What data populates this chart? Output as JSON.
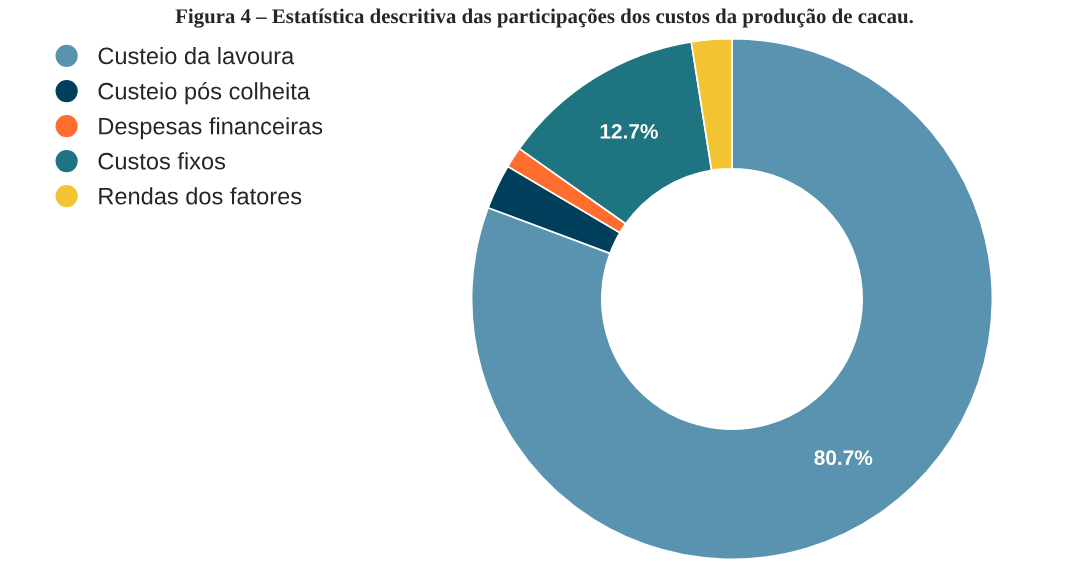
{
  "chart_data": {
    "type": "donut",
    "title": "Figura 4 – Estatística descritiva das participações dos custos da produção de cacau.",
    "categories": [
      "Custeio da lavoura",
      "Custeio pós colheita",
      "Despesas financeiras",
      "Custos fixos",
      "Rendas dos fatores"
    ],
    "values": [
      80.7,
      2.8,
      1.3,
      12.7,
      2.5
    ],
    "colors": [
      "#5a93b0",
      "#003f5c",
      "#ff6e2f",
      "#1f7482",
      "#f3c431"
    ],
    "value_labels": [
      "80.7%",
      null,
      null,
      "12.7%",
      null
    ],
    "legend": "top left"
  }
}
